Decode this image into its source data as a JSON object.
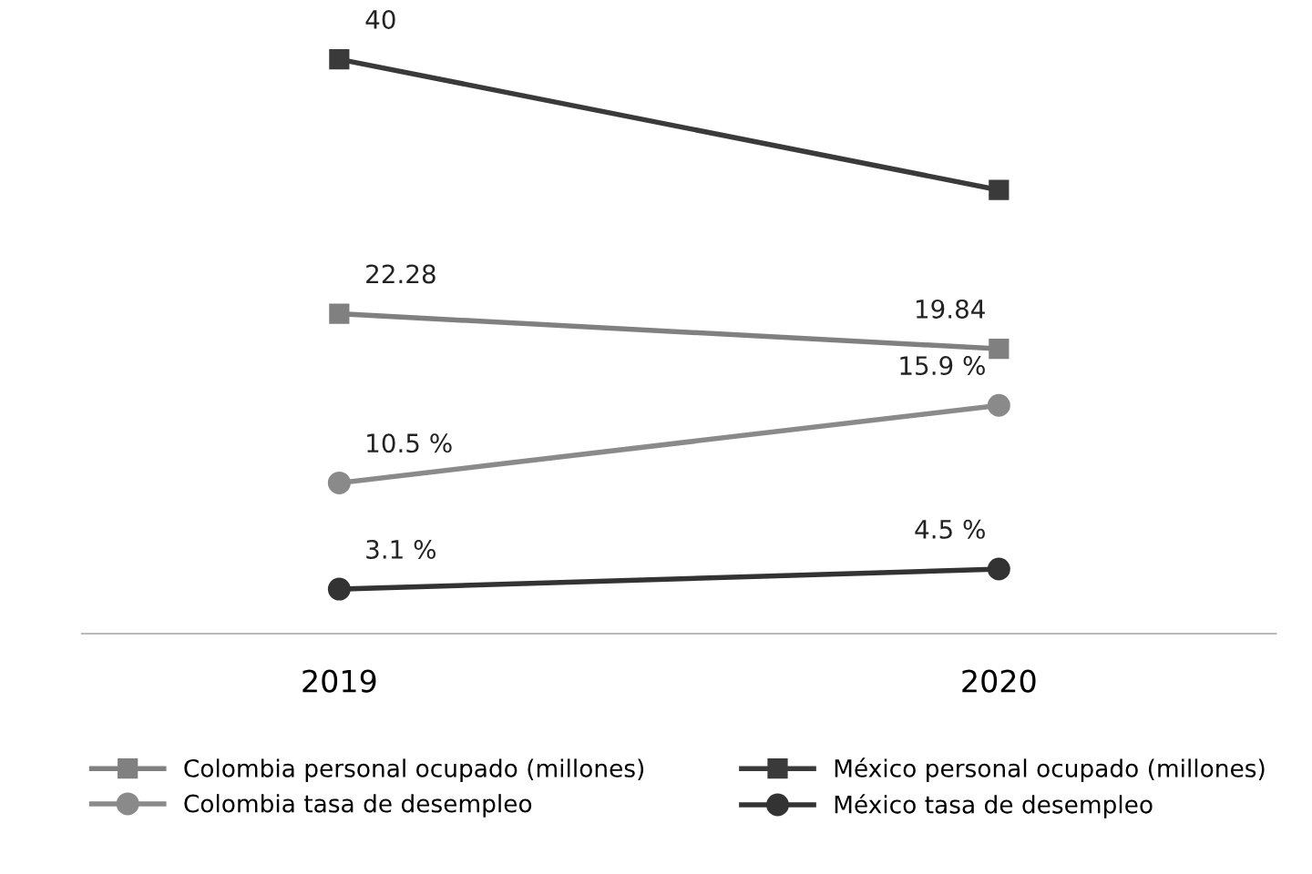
{
  "chart_data": {
    "type": "line",
    "categories": [
      "2019",
      "2020"
    ],
    "tick_labels": "x",
    "grid": false,
    "legend": "bottom",
    "series": [
      {
        "name": "Colombia personal ocupado (millones)",
        "color": "#808080",
        "marker": "square",
        "values": [
          22.28,
          19.84
        ],
        "value_labels": [
          "22.28",
          "19.84"
        ]
      },
      {
        "name": "México personal ocupado (millones)",
        "color": "#3a3a3a",
        "marker": "square",
        "values": [
          40,
          30.9
        ],
        "value_labels": [
          "40",
          null
        ]
      },
      {
        "name": "Colombia tasa de desempleo",
        "color": "#8a8a8a",
        "marker": "circle",
        "values": [
          10.5,
          15.9
        ],
        "value_labels": [
          "10.5 %",
          "15.9 %"
        ]
      },
      {
        "name": "México tasa de desempleo",
        "color": "#333333",
        "marker": "circle",
        "values": [
          3.1,
          4.5
        ],
        "value_labels": [
          "3.1 %",
          "4.5 %"
        ]
      }
    ]
  }
}
